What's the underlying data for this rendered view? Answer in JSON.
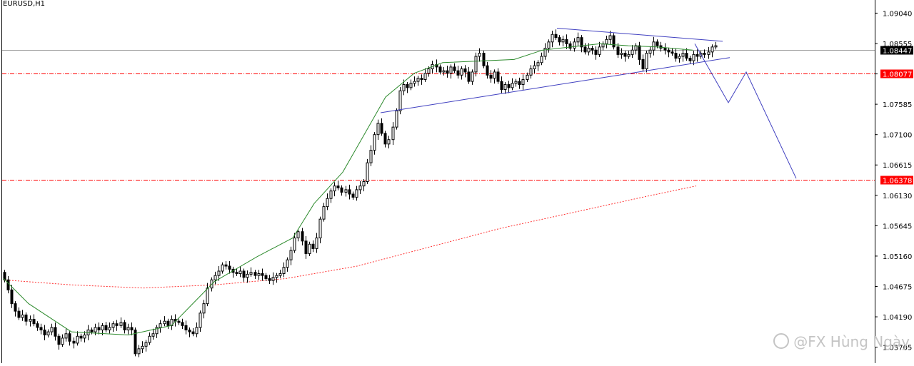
{
  "chart_data": {
    "type": "candlestick",
    "symbol_label": "EURUSD,H1",
    "watermark": "@FX Hùng Ngày",
    "ylim": [
      1.0345,
      1.0925
    ],
    "y_ticks": [
      "1.09040",
      "1.08555",
      "1.08070",
      "1.07585",
      "1.07100",
      "1.06615",
      "1.06130",
      "1.05645",
      "1.05160",
      "1.04675",
      "1.04190",
      "1.03705"
    ],
    "price_labels": [
      {
        "name": "current-price",
        "value": "1.08447",
        "price": 1.08447,
        "bg": "#000000",
        "fg": "#ffffff"
      },
      {
        "name": "resistance-level",
        "value": "1.08077",
        "price": 1.08077,
        "bg": "#ff0000",
        "fg": "#ffffff"
      },
      {
        "name": "target-level",
        "value": "1.06378",
        "price": 1.06378,
        "bg": "#ff0000",
        "fg": "#ffffff"
      }
    ],
    "colors": {
      "bull": "#ffffff",
      "bear": "#000000",
      "ma_fast": "#2e8b2e",
      "ma_slow": "#ff3333",
      "trend": "#4040c0",
      "level": "#ff0000",
      "price_line": "#a0a0a0"
    },
    "candles_close": [
      1.0478,
      1.0462,
      1.044,
      1.0428,
      1.0418,
      1.0422,
      1.0412,
      1.0415,
      1.0408,
      1.0402,
      1.0398,
      1.039,
      1.0395,
      1.0402,
      1.0388,
      1.0375,
      1.0385,
      1.0392,
      1.038,
      1.0377,
      1.0388,
      1.0385,
      1.039,
      1.0398,
      1.0395,
      1.0402,
      1.0398,
      1.0405,
      1.0398,
      1.0402,
      1.0408,
      1.0405,
      1.041,
      1.0398,
      1.0402,
      1.0398,
      1.036,
      1.0368,
      1.0372,
      1.0378,
      1.0388,
      1.0392,
      1.0402,
      1.0408,
      1.0412,
      1.0405,
      1.0415,
      1.0412,
      1.041,
      1.0405,
      1.0398,
      1.0395,
      1.0392,
      1.0402,
      1.0425,
      1.044,
      1.0465,
      1.0478,
      1.0485,
      1.0492,
      1.0502,
      1.05,
      1.0495,
      1.049,
      1.0488,
      1.0492,
      1.0482,
      1.0487,
      1.049,
      1.0485,
      1.0488,
      1.0485,
      1.048,
      1.0477,
      1.0482,
      1.0485,
      1.0488,
      1.0498,
      1.051,
      1.0525,
      1.0545,
      1.0555,
      1.054,
      1.052,
      1.0535,
      1.0528,
      1.0545,
      1.0575,
      1.0595,
      1.0608,
      1.062,
      1.0628,
      1.0625,
      1.0618,
      1.0622,
      1.0615,
      1.061,
      1.0622,
      1.0628,
      1.0635,
      1.0665,
      1.0685,
      1.071,
      1.0728,
      1.0712,
      1.0695,
      1.0702,
      1.0722,
      1.0748,
      1.078,
      1.079,
      1.0785,
      1.0792,
      1.0795,
      1.08,
      1.0798,
      1.0808,
      1.0815,
      1.0822,
      1.0818,
      1.081,
      1.0812,
      1.0808,
      1.0818,
      1.0812,
      1.0805,
      1.0815,
      1.081,
      1.0795,
      1.081,
      1.0835,
      1.084,
      1.082,
      1.0805,
      1.08,
      1.081,
      1.0795,
      1.0782,
      1.079,
      1.0785,
      1.0792,
      1.0795,
      1.079,
      1.0798,
      1.0805,
      1.0815,
      1.082,
      1.0825,
      1.0835,
      1.0848,
      1.0858,
      1.087,
      1.0865,
      1.0858,
      1.0862,
      1.0855,
      1.0848,
      1.0858,
      1.0865,
      1.085,
      1.0842,
      1.0848,
      1.0845,
      1.0838,
      1.085,
      1.0855,
      1.0862,
      1.0868,
      1.085,
      1.0838,
      1.084,
      1.0835,
      1.0838,
      1.0845,
      1.0852,
      1.083,
      1.0815,
      1.084,
      1.0845,
      1.0858,
      1.0852,
      1.0848,
      1.0845,
      1.0842,
      1.084,
      1.0832,
      1.0835,
      1.084,
      1.0832,
      1.0828,
      1.0838,
      1.0835,
      1.084,
      1.0838,
      1.0842,
      1.085,
      1.0852
    ],
    "ma_fast": [
      [
        5,
        1.048
      ],
      [
        40,
        1.044
      ],
      [
        100,
        1.0395
      ],
      [
        180,
        1.039
      ],
      [
        240,
        1.0405
      ],
      [
        300,
        1.0475
      ],
      [
        360,
        1.0515
      ],
      [
        410,
        1.0545
      ],
      [
        440,
        1.06
      ],
      [
        480,
        1.065
      ],
      [
        510,
        1.071
      ],
      [
        540,
        1.077
      ],
      [
        580,
        1.0808
      ],
      [
        620,
        1.0825
      ],
      [
        680,
        1.0828
      ],
      [
        720,
        1.083
      ],
      [
        760,
        1.0845
      ],
      [
        800,
        1.085
      ],
      [
        840,
        1.0855
      ],
      [
        880,
        1.0852
      ],
      [
        920,
        1.085
      ],
      [
        970,
        1.0845
      ]
    ],
    "ma_slow": [
      [
        5,
        1.0478
      ],
      [
        100,
        1.047
      ],
      [
        200,
        1.0465
      ],
      [
        300,
        1.047
      ],
      [
        400,
        1.048
      ],
      [
        500,
        1.05
      ],
      [
        600,
        1.053
      ],
      [
        700,
        1.056
      ],
      [
        800,
        1.0585
      ],
      [
        900,
        1.061
      ],
      [
        975,
        1.0628
      ]
    ],
    "trend_lines": [
      {
        "name": "triangle-upper",
        "from": [
          780,
          1.088
        ],
        "to": [
          1012,
          1.0859
        ]
      },
      {
        "name": "triangle-lower",
        "from": [
          533,
          1.0745
        ],
        "to": [
          1022,
          1.0833
        ]
      },
      {
        "name": "projection-path",
        "points": [
          [
            973,
            1.0855
          ],
          [
            1020,
            1.0761
          ],
          [
            1045,
            1.081
          ],
          [
            1115,
            1.064
          ]
        ]
      }
    ]
  }
}
